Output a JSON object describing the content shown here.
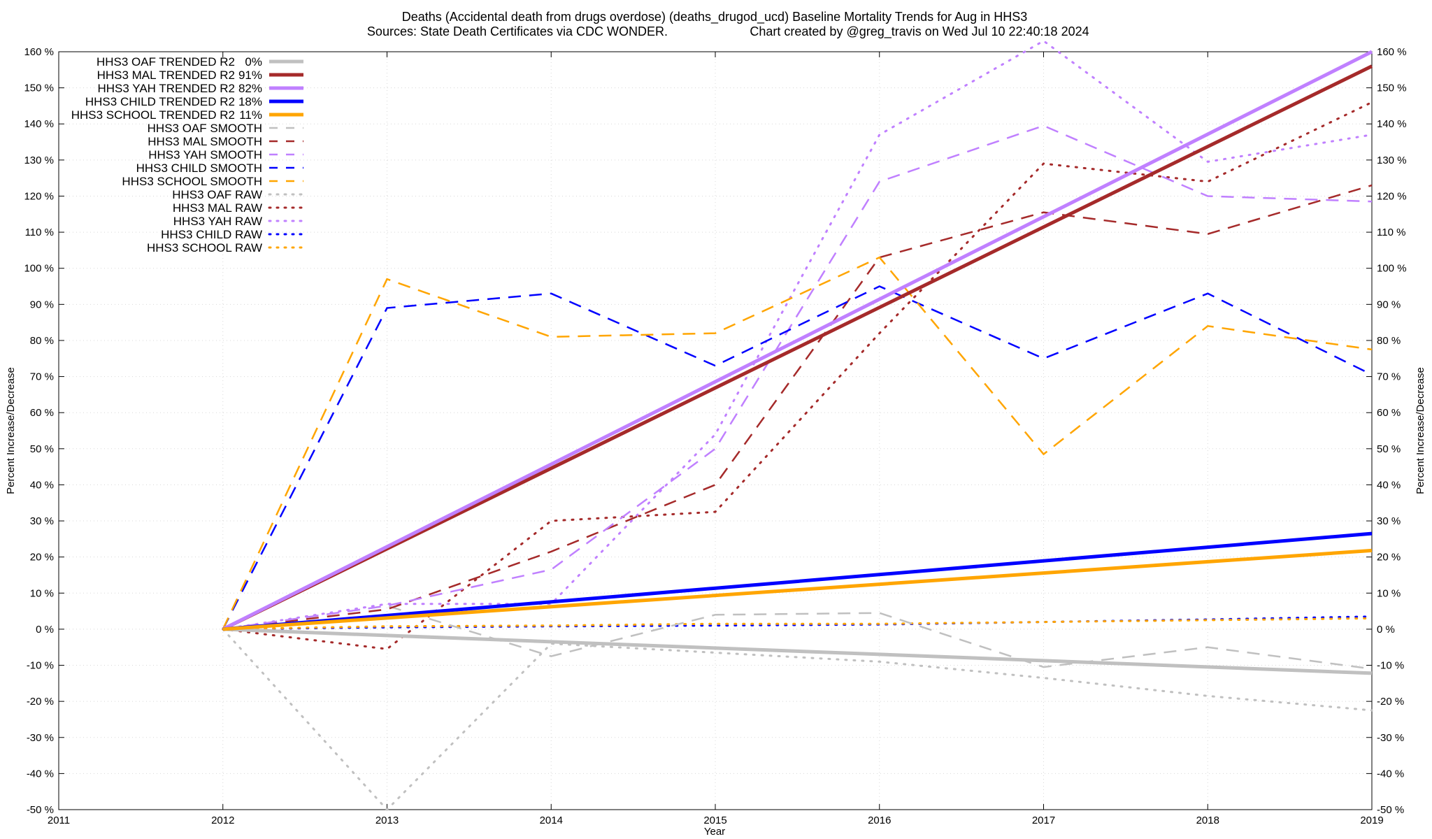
{
  "chart_data": {
    "type": "line",
    "title_line1": "Deaths (Accidental death from drugs overdose) (deaths_drugod_ucd)  Baseline Mortality Trends for Aug in HHS3",
    "title_line2_left": "Sources: State Death Certificates via CDC WONDER.",
    "title_line2_right": "Chart created by @greg_travis on Wed Jul 10 22:40:18 2024",
    "xlabel": "Year",
    "ylabel": "Percent Increase/Decrease",
    "xlim": [
      2011,
      2019
    ],
    "ylim": [
      -50,
      160
    ],
    "x_ticks": [
      "2011",
      "2012",
      "2013",
      "2014",
      "2015",
      "2016",
      "2017",
      "2018",
      "2019"
    ],
    "y_ticks": [
      "-50 %",
      "-40 %",
      "-30 %",
      "-20 %",
      "-10 %",
      "0 %",
      "10 %",
      "20 %",
      "30 %",
      "40 %",
      "50 %",
      "60 %",
      "70 %",
      "80 %",
      "90 %",
      "100 %",
      "110 %",
      "120 %",
      "130 %",
      "140 %",
      "150 %",
      "160 %"
    ],
    "y_tick_values": [
      -50,
      -40,
      -30,
      -20,
      -10,
      0,
      10,
      20,
      30,
      40,
      50,
      60,
      70,
      80,
      90,
      100,
      110,
      120,
      130,
      140,
      150,
      160
    ],
    "grid": true,
    "legend_position": "top-left",
    "series": [
      {
        "name": "HHS3 OAF TRENDED R2",
        "r2": "0%",
        "color": "#c0c0c0",
        "style": "solid",
        "x": [
          2012,
          2019
        ],
        "values": [
          0,
          -12.2
        ]
      },
      {
        "name": "HHS3 MAL TRENDED R2",
        "r2": "91%",
        "color": "#a52a2a",
        "style": "solid",
        "x": [
          2012,
          2019
        ],
        "values": [
          0,
          156
        ]
      },
      {
        "name": "HHS3 YAH TRENDED R2",
        "r2": "82%",
        "color": "#c080ff",
        "style": "solid",
        "x": [
          2012,
          2019
        ],
        "values": [
          0,
          160
        ]
      },
      {
        "name": "HHS3 CHILD TRENDED R2",
        "r2": "18%",
        "color": "#0000ff",
        "style": "solid",
        "x": [
          2012,
          2019
        ],
        "values": [
          0,
          26.5
        ]
      },
      {
        "name": "HHS3 SCHOOL TRENDED R2",
        "r2": "11%",
        "color": "#ffa500",
        "style": "solid",
        "x": [
          2012,
          2019
        ],
        "values": [
          0,
          21.8
        ]
      },
      {
        "name": "HHS3 OAF SMOOTH",
        "r2": "",
        "color": "#c0c0c0",
        "style": "dashed",
        "x": [
          2012,
          2013,
          2014,
          2015,
          2016,
          2017,
          2018,
          2019
        ],
        "values": [
          0,
          6.5,
          -7.5,
          4,
          4.5,
          -10.5,
          -5,
          -11
        ]
      },
      {
        "name": "HHS3 MAL SMOOTH",
        "r2": "",
        "color": "#a52a2a",
        "style": "dashed",
        "x": [
          2012,
          2013,
          2014,
          2015,
          2016,
          2017,
          2018,
          2019
        ],
        "values": [
          0,
          5.5,
          21.5,
          40,
          103,
          115.5,
          109.5,
          123
        ]
      },
      {
        "name": "HHS3 YAH SMOOTH",
        "r2": "",
        "color": "#c080ff",
        "style": "dashed",
        "x": [
          2012,
          2013,
          2014,
          2015,
          2016,
          2017,
          2018,
          2019
        ],
        "values": [
          0,
          6.5,
          16.5,
          50,
          124,
          139.5,
          120,
          118.5
        ]
      },
      {
        "name": "HHS3 CHILD SMOOTH",
        "r2": "",
        "color": "#0000ff",
        "style": "dashed",
        "x": [
          2012,
          2013,
          2014,
          2015,
          2016,
          2017,
          2018,
          2019
        ],
        "values": [
          0,
          89,
          93,
          73,
          95,
          75,
          93,
          70.5
        ]
      },
      {
        "name": "HHS3 SCHOOL SMOOTH",
        "r2": "",
        "color": "#ffa500",
        "style": "dashed",
        "x": [
          2012,
          2013,
          2014,
          2015,
          2016,
          2017,
          2018,
          2019
        ],
        "values": [
          0,
          97,
          81,
          82,
          103,
          48.5,
          84,
          77.5
        ]
      },
      {
        "name": "HHS3 OAF RAW",
        "r2": "",
        "color": "#c0c0c0",
        "style": "dotted",
        "x": [
          2012,
          2013,
          2014,
          2015,
          2016,
          2017,
          2018,
          2019
        ],
        "values": [
          0,
          -50,
          -4,
          -6.5,
          -9,
          -13.5,
          -18.5,
          -22.5
        ]
      },
      {
        "name": "HHS3 MAL RAW",
        "r2": "",
        "color": "#a52a2a",
        "style": "dotted",
        "x": [
          2012,
          2013,
          2014,
          2015,
          2016,
          2017,
          2018,
          2019
        ],
        "values": [
          0,
          -5.5,
          30,
          32.5,
          82,
          129,
          124,
          146
        ]
      },
      {
        "name": "HHS3 YAH RAW",
        "r2": "",
        "color": "#c080ff",
        "style": "dotted",
        "x": [
          2012,
          2013,
          2014,
          2015,
          2016,
          2017,
          2018,
          2019
        ],
        "values": [
          0,
          7,
          7,
          54,
          137,
          163,
          129.5,
          137
        ]
      },
      {
        "name": "HHS3 CHILD RAW",
        "r2": "",
        "color": "#0000ff",
        "style": "dotted",
        "x": [
          2012,
          2013,
          2014,
          2015,
          2016,
          2017,
          2018,
          2019
        ],
        "values": [
          0,
          0.5,
          0.8,
          1,
          1.3,
          2,
          2.7,
          3.5
        ]
      },
      {
        "name": "HHS3 SCHOOL RAW",
        "r2": "",
        "color": "#ffa500",
        "style": "dotted",
        "x": [
          2012,
          2013,
          2014,
          2015,
          2016,
          2017,
          2018,
          2019
        ],
        "values": [
          0,
          0.8,
          1,
          1.5,
          1.5,
          2,
          2.5,
          3
        ]
      }
    ]
  }
}
